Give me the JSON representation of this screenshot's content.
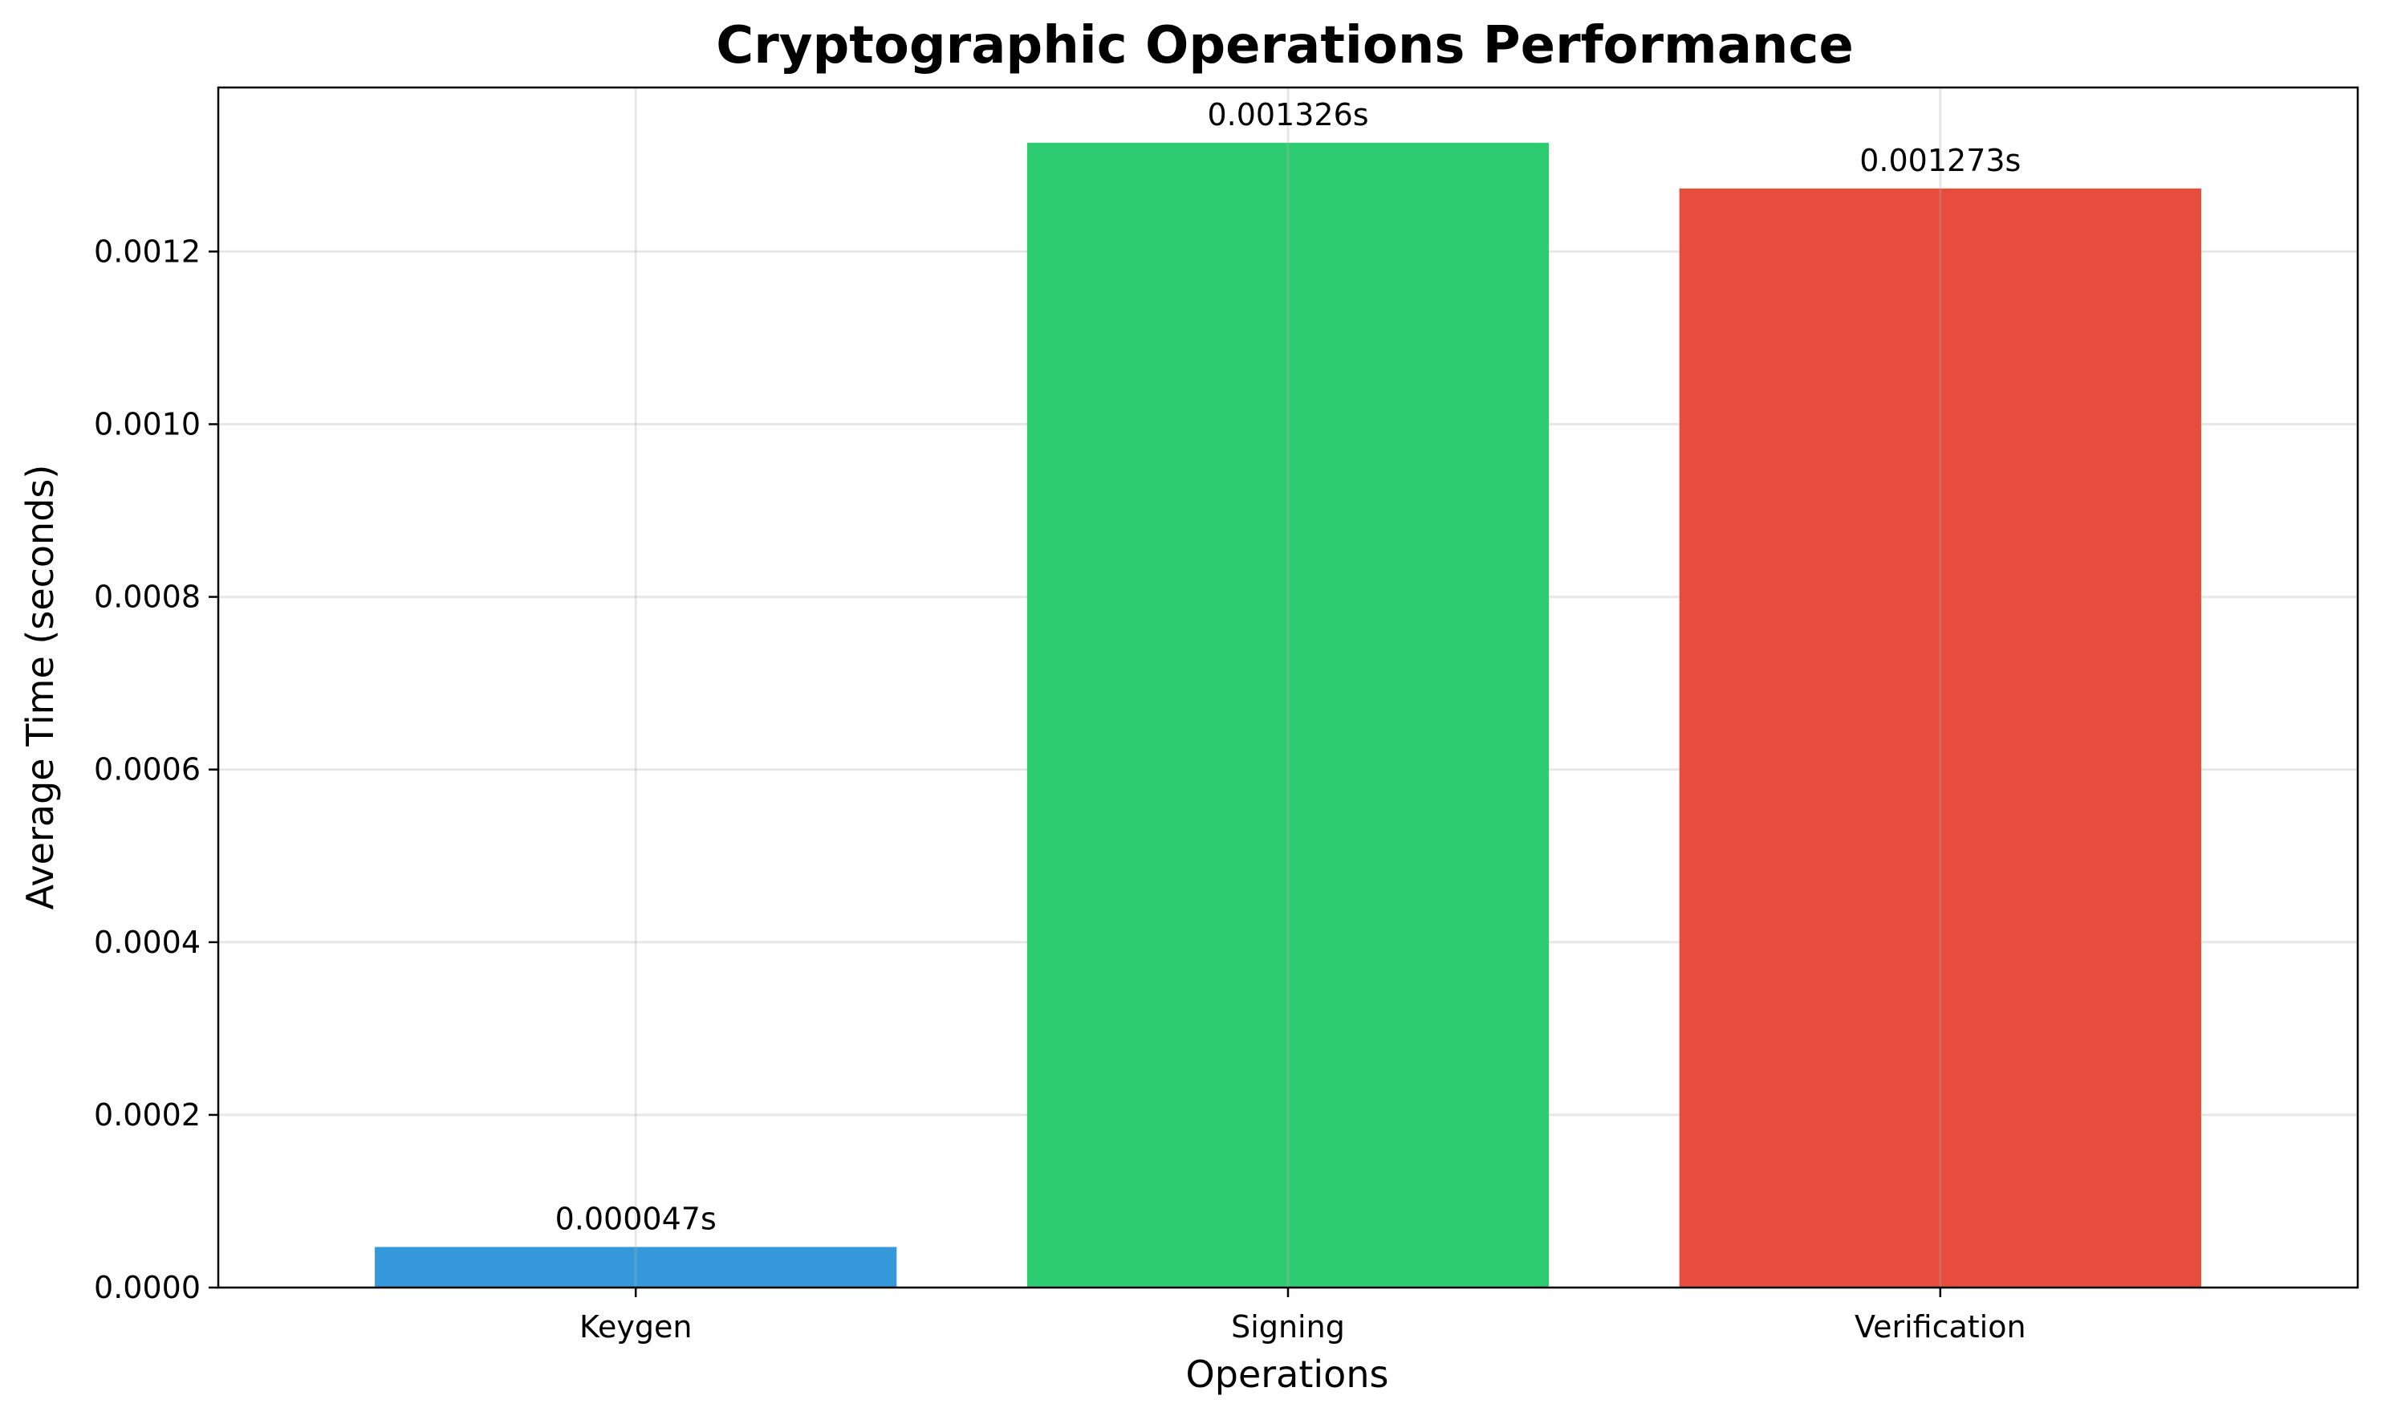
{
  "chart_data": {
    "type": "bar",
    "title": "Cryptographic Operations Performance",
    "xlabel": "Operations",
    "ylabel": "Average Time (seconds)",
    "categories": [
      "Keygen",
      "Signing",
      "Verification"
    ],
    "values": [
      4.7e-05,
      0.001326,
      0.001273
    ],
    "value_labels": [
      "0.000047s",
      "0.001326s",
      "0.001273s"
    ],
    "colors": [
      "#3498db",
      "#2ecc71",
      "#e74c3c"
    ],
    "ylim": [
      0,
      0.00139
    ],
    "yticks": [
      0.0,
      0.0002,
      0.0004,
      0.0006,
      0.0008,
      0.001,
      0.0012
    ],
    "ytick_labels": [
      "0.0000",
      "0.0002",
      "0.0004",
      "0.0006",
      "0.0008",
      "0.0010",
      "0.0012"
    ],
    "grid": true,
    "legend": "none"
  }
}
